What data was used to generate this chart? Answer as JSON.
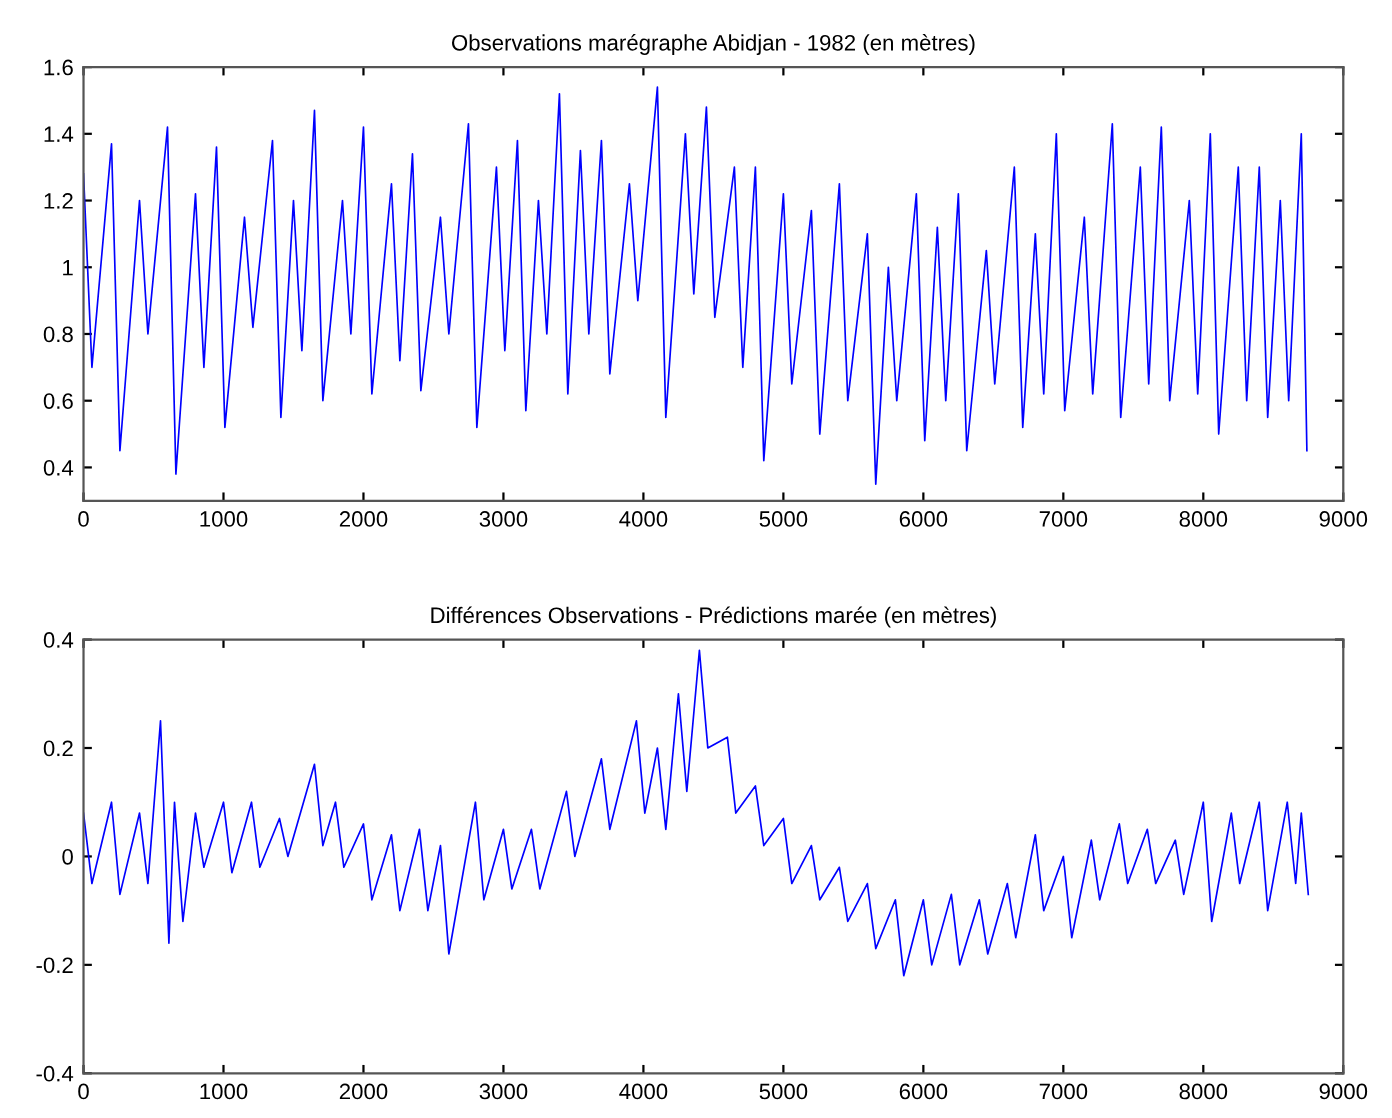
{
  "chart_data": [
    {
      "type": "line",
      "title": "Observations marégraphe Abidjan - 1982 (en mètres)",
      "xlim": [
        0,
        9000
      ],
      "xticks": [
        0,
        1000,
        2000,
        3000,
        4000,
        5000,
        6000,
        7000,
        8000,
        9000
      ],
      "ylim": [
        0.3,
        1.6
      ],
      "yticks": [
        0.4,
        0.6,
        0.8,
        1,
        1.2,
        1.4,
        1.6
      ],
      "grid": false,
      "marker": "none",
      "line_style": "solid",
      "series": [
        {
          "color": "#0000ff",
          "x": [
            0,
            60,
            200,
            260,
            400,
            460,
            600,
            660,
            800,
            860,
            950,
            1010,
            1150,
            1210,
            1350,
            1410,
            1500,
            1560,
            1650,
            1710,
            1850,
            1910,
            2000,
            2060,
            2200,
            2260,
            2350,
            2410,
            2550,
            2610,
            2750,
            2810,
            2950,
            3010,
            3100,
            3160,
            3250,
            3310,
            3400,
            3460,
            3550,
            3610,
            3700,
            3760,
            3900,
            3960,
            4100,
            4160,
            4300,
            4360,
            4450,
            4510,
            4650,
            4710,
            4800,
            4860,
            5000,
            5060,
            5200,
            5260,
            5400,
            5460,
            5600,
            5660,
            5750,
            5810,
            5950,
            6010,
            6100,
            6160,
            6250,
            6310,
            6450,
            6510,
            6650,
            6710,
            6800,
            6860,
            6950,
            7010,
            7150,
            7210,
            7350,
            7410,
            7550,
            7610,
            7700,
            7760,
            7900,
            7960,
            8050,
            8110,
            8250,
            8310,
            8400,
            8460,
            8550,
            8610,
            8700,
            8740
          ],
          "values": [
            1.28,
            0.7,
            1.37,
            0.45,
            1.2,
            0.8,
            1.42,
            0.38,
            1.22,
            0.7,
            1.36,
            0.52,
            1.15,
            0.82,
            1.38,
            0.55,
            1.2,
            0.75,
            1.47,
            0.6,
            1.2,
            0.8,
            1.42,
            0.62,
            1.25,
            0.72,
            1.34,
            0.63,
            1.15,
            0.8,
            1.43,
            0.52,
            1.3,
            0.75,
            1.38,
            0.57,
            1.2,
            0.8,
            1.52,
            0.62,
            1.35,
            0.8,
            1.38,
            0.68,
            1.25,
            0.9,
            1.54,
            0.55,
            1.4,
            0.92,
            1.48,
            0.85,
            1.3,
            0.7,
            1.3,
            0.42,
            1.22,
            0.65,
            1.17,
            0.5,
            1.25,
            0.6,
            1.1,
            0.35,
            1.0,
            0.6,
            1.22,
            0.48,
            1.12,
            0.6,
            1.22,
            0.45,
            1.05,
            0.65,
            1.3,
            0.52,
            1.1,
            0.62,
            1.4,
            0.57,
            1.15,
            0.62,
            1.43,
            0.55,
            1.3,
            0.65,
            1.42,
            0.6,
            1.2,
            0.62,
            1.4,
            0.5,
            1.3,
            0.6,
            1.3,
            0.55,
            1.2,
            0.6,
            1.4,
            0.45
          ]
        }
      ]
    },
    {
      "type": "line",
      "title": "Différences Observations - Prédictions marée (en mètres)",
      "xlim": [
        0,
        9000
      ],
      "xticks": [
        0,
        1000,
        2000,
        3000,
        4000,
        5000,
        6000,
        7000,
        8000,
        9000
      ],
      "ylim": [
        -0.4,
        0.4
      ],
      "yticks": [
        -0.4,
        -0.2,
        0,
        0.2,
        0.4
      ],
      "grid": false,
      "marker": "none",
      "line_style": "solid",
      "series": [
        {
          "color": "#0000ff",
          "x": [
            0,
            60,
            200,
            260,
            400,
            460,
            550,
            610,
            650,
            710,
            800,
            860,
            1000,
            1060,
            1200,
            1260,
            1400,
            1460,
            1650,
            1710,
            1800,
            1860,
            2000,
            2060,
            2200,
            2260,
            2400,
            2460,
            2550,
            2610,
            2800,
            2860,
            3000,
            3060,
            3200,
            3260,
            3450,
            3510,
            3700,
            3760,
            3950,
            4010,
            4100,
            4160,
            4250,
            4310,
            4400,
            4460,
            4600,
            4660,
            4800,
            4860,
            5000,
            5060,
            5200,
            5260,
            5400,
            5460,
            5600,
            5660,
            5800,
            5860,
            6000,
            6060,
            6200,
            6260,
            6400,
            6460,
            6600,
            6660,
            6800,
            6860,
            7000,
            7060,
            7200,
            7260,
            7400,
            7460,
            7600,
            7660,
            7800,
            7860,
            8000,
            8060,
            8200,
            8260,
            8400,
            8460,
            8600,
            8660,
            8700,
            8750
          ],
          "values": [
            0.08,
            -0.05,
            0.1,
            -0.07,
            0.08,
            -0.05,
            0.25,
            -0.16,
            0.1,
            -0.12,
            0.08,
            -0.02,
            0.1,
            -0.03,
            0.1,
            -0.02,
            0.07,
            0.0,
            0.17,
            0.02,
            0.1,
            -0.02,
            0.06,
            -0.08,
            0.04,
            -0.1,
            0.05,
            -0.1,
            0.02,
            -0.18,
            0.1,
            -0.08,
            0.05,
            -0.06,
            0.05,
            -0.06,
            0.12,
            0.0,
            0.18,
            0.05,
            0.25,
            0.08,
            0.2,
            0.05,
            0.3,
            0.12,
            0.38,
            0.2,
            0.22,
            0.08,
            0.13,
            0.02,
            0.07,
            -0.05,
            0.02,
            -0.08,
            -0.02,
            -0.12,
            -0.05,
            -0.17,
            -0.08,
            -0.22,
            -0.08,
            -0.2,
            -0.07,
            -0.2,
            -0.08,
            -0.18,
            -0.05,
            -0.15,
            0.04,
            -0.1,
            0.0,
            -0.15,
            0.03,
            -0.08,
            0.06,
            -0.05,
            0.05,
            -0.05,
            0.03,
            -0.07,
            0.1,
            -0.12,
            0.08,
            -0.05,
            0.1,
            -0.1,
            0.1,
            -0.05,
            0.08,
            -0.07
          ]
        }
      ]
    }
  ]
}
